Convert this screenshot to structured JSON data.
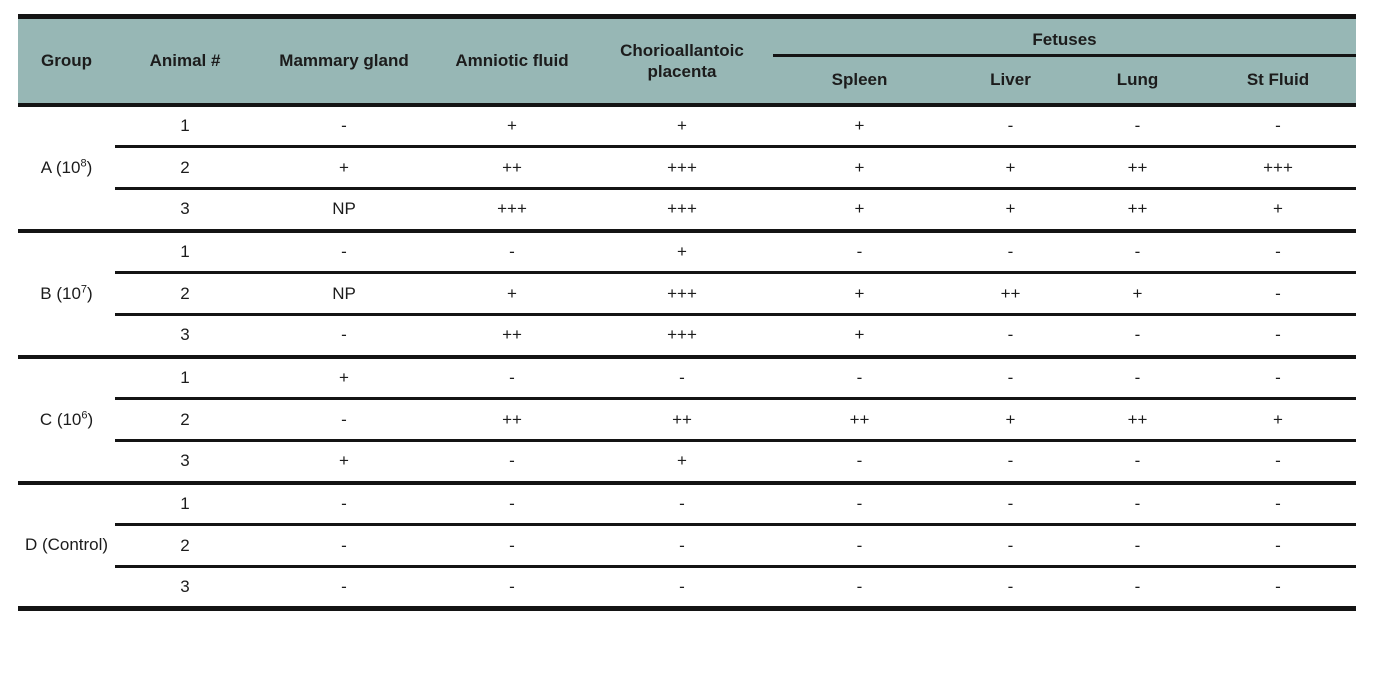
{
  "colors": {
    "header_background": "#97b7b5",
    "text": "#1c1c1c",
    "line": "#141414",
    "page_background": "#ffffff"
  },
  "table": {
    "columns": {
      "group": "Group",
      "animal": "Animal #",
      "mammary": "Mammary gland",
      "amniotic": "Amniotic fluid",
      "chorioallantoic": "Chorioallantoic placenta",
      "fetuses_group": "Fetuses",
      "fetuses_sub": [
        "Spleen",
        "Liver",
        "Lung",
        "St Fluid"
      ]
    },
    "value_columns_order": [
      "Mammary gland",
      "Amniotic fluid",
      "Chorioallantoic placenta",
      "Spleen",
      "Liver",
      "Lung",
      "St Fluid"
    ],
    "groups": [
      {
        "label_prefix": "A (10",
        "label_sup": "8",
        "label_suffix": ")",
        "rows": [
          {
            "animal": "1",
            "values": [
              "-",
              "+",
              "+",
              "+",
              "-",
              "-",
              "-"
            ]
          },
          {
            "animal": "2",
            "values": [
              "+",
              "++",
              "+++",
              "+",
              "+",
              "++",
              "+++"
            ]
          },
          {
            "animal": "3",
            "values": [
              "NP",
              "+++",
              "+++",
              "+",
              "+",
              "++",
              "+"
            ]
          }
        ]
      },
      {
        "label_prefix": "B (10",
        "label_sup": "7",
        "label_suffix": ")",
        "rows": [
          {
            "animal": "1",
            "values": [
              "-",
              "-",
              "+",
              "-",
              "-",
              "-",
              "-"
            ]
          },
          {
            "animal": "2",
            "values": [
              "NP",
              "+",
              "+++",
              "+",
              "++",
              "+",
              "-"
            ]
          },
          {
            "animal": "3",
            "values": [
              "-",
              "++",
              "+++",
              "+",
              "-",
              "-",
              "-"
            ]
          }
        ]
      },
      {
        "label_prefix": "C (10",
        "label_sup": "6",
        "label_suffix": ")",
        "rows": [
          {
            "animal": "1",
            "values": [
              "+",
              "-",
              "-",
              "-",
              "-",
              "-",
              "-"
            ]
          },
          {
            "animal": "2",
            "values": [
              "-",
              "++",
              "++",
              "++",
              "+",
              "++",
              "+"
            ]
          },
          {
            "animal": "3",
            "values": [
              "+",
              "-",
              "+",
              "-",
              "-",
              "-",
              "-"
            ]
          }
        ]
      },
      {
        "label_prefix": "D (Control)",
        "label_sup": "",
        "label_suffix": "",
        "rows": [
          {
            "animal": "1",
            "values": [
              "-",
              "-",
              "-",
              "-",
              "-",
              "-",
              "-"
            ]
          },
          {
            "animal": "2",
            "values": [
              "-",
              "-",
              "-",
              "-",
              "-",
              "-",
              "-"
            ]
          },
          {
            "animal": "3",
            "values": [
              "-",
              "-",
              "-",
              "-",
              "-",
              "-",
              "-"
            ]
          }
        ]
      }
    ]
  }
}
